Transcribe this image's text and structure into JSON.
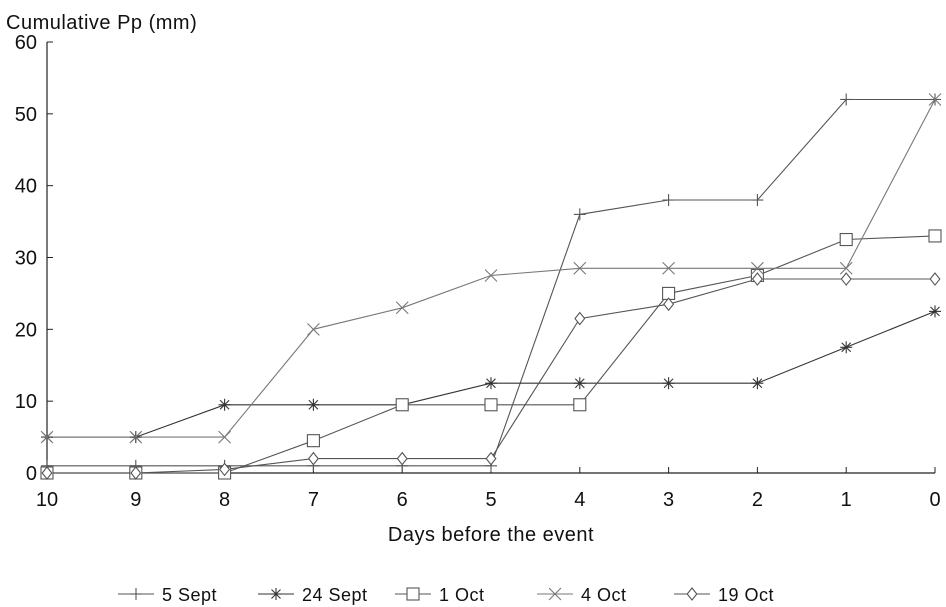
{
  "chart_data": {
    "type": "line",
    "ylabel": "Cumulative Pp (mm)",
    "xlabel": "Days before the event",
    "x": [
      10,
      9,
      8,
      7,
      6,
      5,
      4,
      3,
      2,
      1,
      0
    ],
    "x_reversed": true,
    "xlim": [
      10,
      0
    ],
    "ylim": [
      0,
      60
    ],
    "yticks": [
      0,
      10,
      20,
      30,
      40,
      50,
      60
    ],
    "grid": false,
    "legend_position": "bottom",
    "series": [
      {
        "name": "5 Sept",
        "marker": "plus",
        "color": "#555555",
        "values": [
          1,
          1,
          1,
          1,
          1,
          1,
          36,
          38,
          38,
          52,
          52
        ]
      },
      {
        "name": "24 Sept",
        "marker": "asterisk",
        "color": "#333333",
        "values": [
          5,
          5,
          9.5,
          9.5,
          9.5,
          12.5,
          12.5,
          12.5,
          12.5,
          17.5,
          22.5
        ]
      },
      {
        "name": "1 Oct",
        "marker": "square",
        "color": "#555555",
        "values": [
          0,
          0,
          0,
          4.5,
          9.5,
          9.5,
          9.5,
          25,
          27.5,
          32.5,
          33
        ]
      },
      {
        "name": "4 Oct",
        "marker": "cross",
        "color": "#777777",
        "values": [
          5,
          5,
          5,
          20,
          23,
          27.5,
          28.5,
          28.5,
          28.5,
          28.5,
          52
        ]
      },
      {
        "name": "19 Oct",
        "marker": "diamond",
        "color": "#555555",
        "values": [
          0,
          0,
          0.5,
          2,
          2,
          2,
          21.5,
          23.5,
          27,
          27,
          27
        ]
      }
    ]
  }
}
